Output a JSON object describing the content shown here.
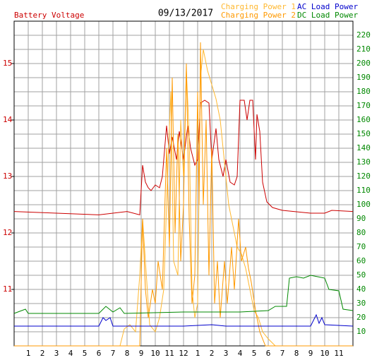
{
  "chart_data": {
    "type": "line",
    "title": "09/13/2017",
    "y_label": "Battery Voltage",
    "xlim": [
      0,
      24
    ],
    "xticks": [
      1,
      2,
      3,
      4,
      5,
      6,
      7,
      8,
      9,
      10,
      11,
      12,
      {
        "value": 13,
        "label": "1"
      },
      {
        "value": 14,
        "label": "2"
      },
      {
        "value": 15,
        "label": "3"
      },
      {
        "value": 16,
        "label": "4"
      },
      {
        "value": 17,
        "label": "5"
      },
      {
        "value": 18,
        "label": "6"
      },
      {
        "value": 19,
        "label": "7"
      },
      {
        "value": 20,
        "label": "8"
      },
      {
        "value": 21,
        "label": "9"
      },
      {
        "value": 22,
        "label": "10"
      },
      {
        "value": 23,
        "label": "11"
      }
    ],
    "ylim": [
      10,
      15.75
    ],
    "yticks": [
      11,
      12,
      13,
      14,
      15
    ],
    "y2lim": [
      0,
      230
    ],
    "y2ticks": [
      10,
      20,
      30,
      40,
      50,
      60,
      70,
      80,
      90,
      100,
      110,
      120,
      130,
      140,
      150,
      160,
      170,
      180,
      190,
      200,
      210,
      220
    ],
    "grid": true,
    "series": [
      {
        "name": "Battery Voltage",
        "color": "#cc0000",
        "axis": "y",
        "x": [
          0,
          3,
          6,
          8,
          8.9,
          9.1,
          9.3,
          9.5,
          9.7,
          10,
          10.3,
          10.5,
          10.8,
          11,
          11.2,
          11.5,
          11.7,
          12,
          12.3,
          12.5,
          12.8,
          13,
          13.2,
          13.5,
          13.8,
          14,
          14.3,
          14.5,
          14.8,
          15,
          15.3,
          15.6,
          15.8,
          16,
          16.3,
          16.5,
          16.7,
          16.9,
          17.1,
          17.2,
          17.4,
          17.6,
          17.9,
          18.3,
          19,
          21,
          22,
          22.5,
          24
        ],
        "values": [
          12.38,
          12.35,
          12.32,
          12.38,
          12.32,
          13.2,
          12.9,
          12.8,
          12.75,
          12.85,
          12.8,
          13.0,
          13.9,
          13.4,
          13.7,
          13.3,
          13.8,
          13.3,
          13.9,
          13.5,
          13.2,
          13.3,
          14.3,
          14.35,
          14.3,
          13.3,
          13.85,
          13.3,
          13.0,
          13.3,
          12.9,
          12.85,
          13.0,
          14.35,
          14.35,
          14.0,
          14.35,
          14.35,
          13.3,
          14.1,
          13.8,
          12.9,
          12.55,
          12.45,
          12.4,
          12.35,
          12.35,
          12.4,
          12.38
        ]
      },
      {
        "name": "Charging Power 1",
        "color": "#ffb830",
        "axis": "y2",
        "x": [
          0,
          7.5,
          7.8,
          8.2,
          8.6,
          8.9,
          9.1,
          9.3,
          9.6,
          10,
          10.3,
          10.6,
          10.9,
          11.1,
          11.3,
          11.6,
          11.8,
          12,
          12.2,
          12.4,
          12.6,
          12.8,
          13,
          13.2,
          13.4,
          13.7,
          14,
          14.3,
          14.6,
          14.9,
          15.2,
          15.5,
          15.8,
          16.1,
          16.4,
          16.7,
          17,
          17.3,
          17.6,
          18,
          18.5,
          24
        ],
        "values": [
          0,
          0,
          12,
          15,
          10,
          50,
          90,
          60,
          15,
          10,
          20,
          40,
          130,
          180,
          60,
          50,
          160,
          120,
          195,
          150,
          40,
          20,
          30,
          190,
          210,
          195,
          185,
          175,
          160,
          130,
          100,
          85,
          70,
          65,
          55,
          40,
          25,
          20,
          10,
          5,
          0,
          0
        ]
      },
      {
        "name": "Charging Power 2",
        "color": "#ff9900",
        "axis": "y2",
        "x": [
          0,
          8.9,
          9.1,
          9.3,
          9.5,
          9.8,
          10,
          10.2,
          10.5,
          10.8,
          11,
          11.2,
          11.4,
          11.6,
          11.8,
          12,
          12.2,
          12.4,
          12.6,
          12.8,
          13,
          13.1,
          13.2,
          13.4,
          13.6,
          13.8,
          14,
          14.2,
          14.4,
          14.6,
          14.9,
          15.1,
          15.4,
          15.6,
          15.9,
          16.1,
          16.4,
          16.6,
          16.8,
          17.1,
          17.4,
          17.8,
          24
        ],
        "values": [
          0,
          0,
          90,
          40,
          20,
          40,
          30,
          60,
          40,
          140,
          70,
          190,
          80,
          150,
          60,
          100,
          200,
          90,
          30,
          50,
          180,
          100,
          215,
          100,
          160,
          50,
          140,
          30,
          60,
          20,
          60,
          30,
          70,
          40,
          90,
          60,
          70,
          55,
          45,
          25,
          10,
          0,
          0
        ]
      },
      {
        "name": "AC Load Power",
        "color": "#0000cc",
        "axis": "y2",
        "x": [
          0,
          6,
          6.3,
          6.5,
          6.8,
          7,
          8,
          12,
          14,
          15,
          17,
          19,
          21,
          21.4,
          21.6,
          21.8,
          22,
          24
        ],
        "values": [
          14,
          14,
          20,
          18,
          20,
          14,
          14,
          14,
          15,
          14,
          14,
          14,
          14,
          22,
          16,
          20,
          15,
          14
        ]
      },
      {
        "name": "DC Load Power",
        "color": "#008800",
        "axis": "y2",
        "x": [
          0,
          0.8,
          1,
          6,
          6.5,
          7,
          7.5,
          7.8,
          12,
          16,
          18,
          18.5,
          19.3,
          19.5,
          20,
          20.5,
          21,
          21.5,
          22,
          22.3,
          23,
          23.3,
          24
        ],
        "values": [
          23,
          26,
          23,
          23,
          28,
          24,
          27,
          23,
          24,
          24,
          25,
          28,
          28,
          48,
          49,
          48,
          50,
          49,
          48,
          40,
          39,
          26,
          25
        ]
      }
    ]
  }
}
